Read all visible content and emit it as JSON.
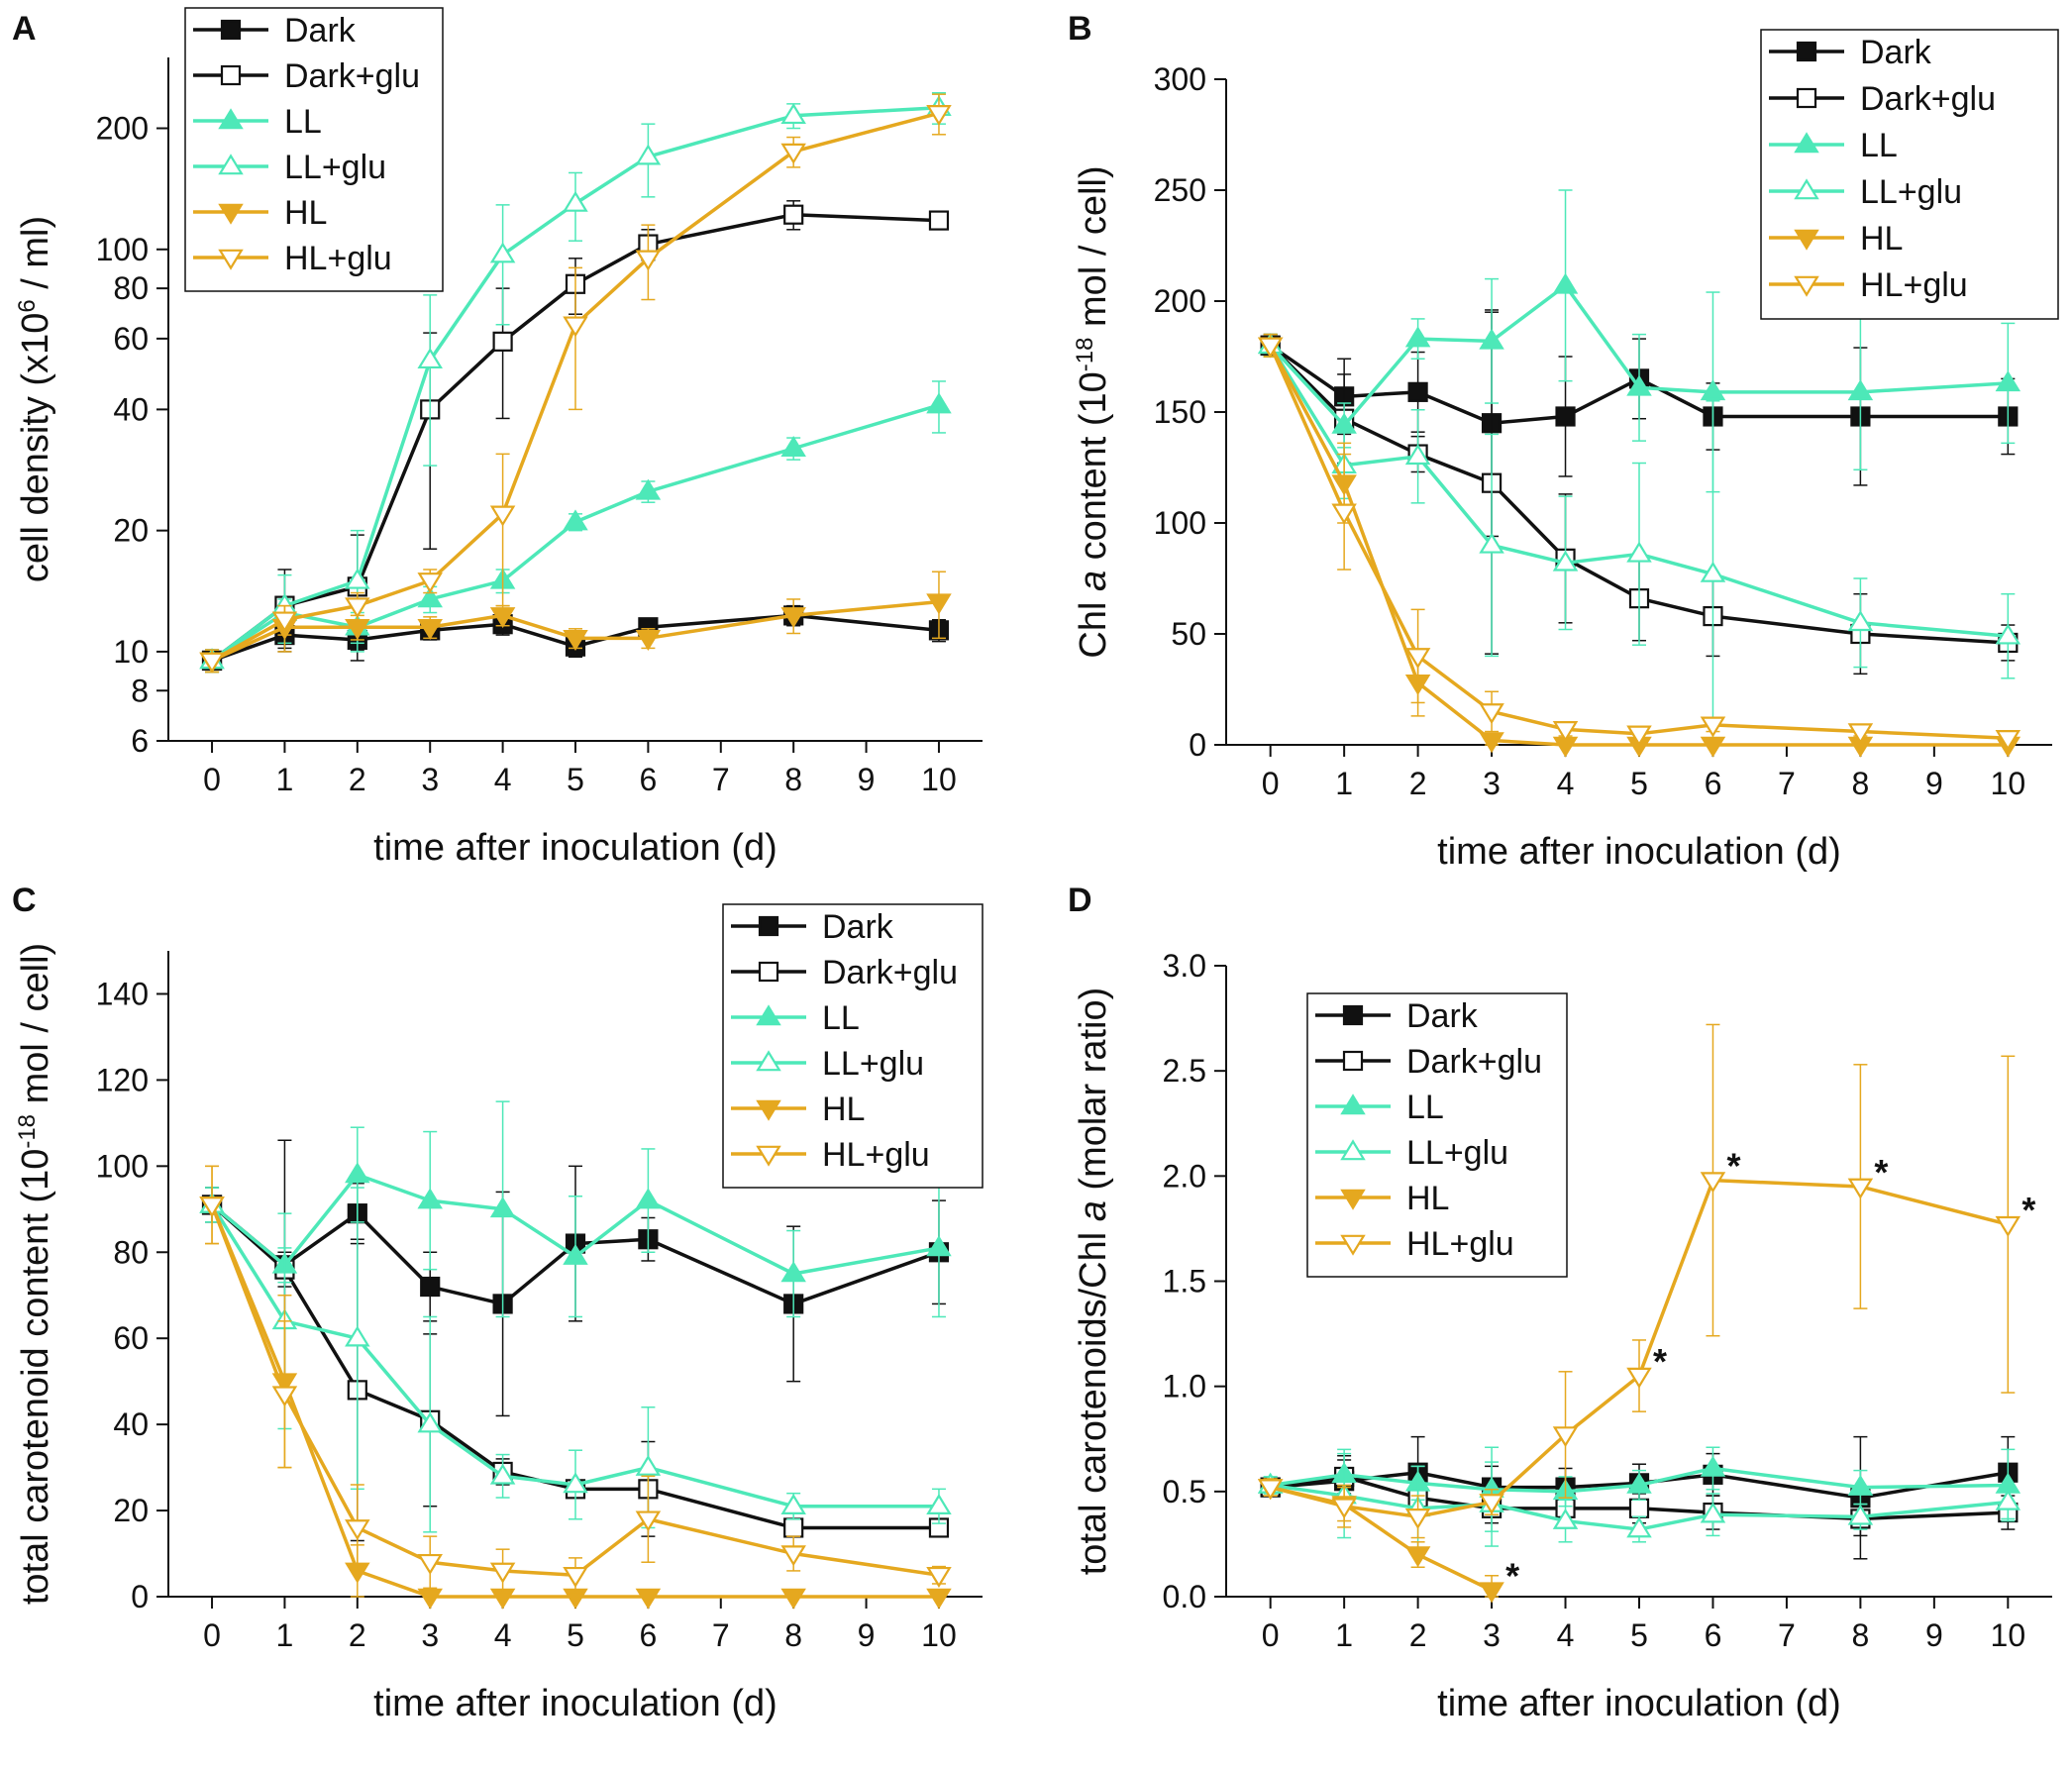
{
  "colors": {
    "black": "#111111",
    "ll": "#4de8b8",
    "hl": "#e5a81f"
  },
  "series_styles": [
    {
      "name": "Dark",
      "color": "#111111",
      "marker": "square",
      "filled": true
    },
    {
      "name": "Dark+glu",
      "color": "#111111",
      "marker": "square",
      "filled": false
    },
    {
      "name": "LL",
      "color": "#4de8b8",
      "marker": "triangle-up",
      "filled": true
    },
    {
      "name": "LL+glu",
      "color": "#4de8b8",
      "marker": "triangle-up",
      "filled": false
    },
    {
      "name": "HL",
      "color": "#e5a81f",
      "marker": "triangle-down",
      "filled": true
    },
    {
      "name": "HL+glu",
      "color": "#e5a81f",
      "marker": "triangle-down",
      "filled": false
    }
  ],
  "chart_data": [
    {
      "panel": "A",
      "type": "line",
      "xlabel": "time after inoculation (d)",
      "ylabel_parts": [
        "cell density (x10",
        "6",
        " / ml)"
      ],
      "yscale": "log",
      "xlim": [
        -0.6,
        10.6
      ],
      "ylim": [
        6,
        300
      ],
      "xticks": [
        0,
        1,
        2,
        3,
        4,
        5,
        6,
        7,
        8,
        9,
        10
      ],
      "yticks": [
        6,
        8,
        10,
        20,
        40,
        60,
        80,
        100,
        200
      ],
      "legend": "top-left",
      "x": [
        0,
        1,
        2,
        3,
        4,
        5,
        6,
        8,
        10
      ],
      "series": [
        {
          "name": "Dark",
          "values": [
            9.5,
            11,
            10.7,
            11.3,
            11.7,
            10.3,
            11.5,
            12.3,
            11.3
          ],
          "errors": [
            0.6,
            0.8,
            0.6,
            0.6,
            0.7,
            0.6,
            0.6,
            0.7,
            0.7
          ]
        },
        {
          "name": "Dark+glu",
          "values": [
            9.5,
            13,
            14.5,
            40,
            59,
            82,
            103,
            122,
            118
          ],
          "errors": [
            0.6,
            3,
            5,
            22,
            21,
            13,
            9,
            10,
            5
          ]
        },
        {
          "name": "LL",
          "values": [
            9.5,
            12.5,
            11.5,
            13.5,
            15,
            21,
            25,
            32,
            41
          ],
          "errors": [
            0.6,
            1,
            1,
            1,
            1,
            1,
            1.5,
            2,
            6
          ]
        },
        {
          "name": "LL+glu",
          "values": [
            9.5,
            13,
            15,
            53,
            97,
            130,
            170,
            215,
            225
          ],
          "errors": [
            0.6,
            2.5,
            5,
            24,
            32,
            25,
            35,
            15,
            20
          ]
        },
        {
          "name": "HL",
          "values": [
            9.5,
            11.5,
            11.5,
            11.5,
            12.3,
            10.8,
            10.8,
            12.3,
            13.3
          ],
          "errors": [
            0.6,
            1.5,
            0.8,
            0.7,
            0.7,
            0.6,
            0.6,
            1.2,
            2.5
          ]
        },
        {
          "name": "HL+glu",
          "values": [
            9.5,
            12,
            13,
            15,
            22,
            65,
            95,
            175,
            218
          ],
          "errors": [
            0.6,
            1,
            1,
            1,
            9,
            25,
            20,
            15,
            25
          ]
        }
      ],
      "annotations": []
    },
    {
      "panel": "B",
      "type": "line",
      "xlabel": "time after inoculation (d)",
      "ylabel_parts": [
        "Chl ",
        "a",
        " content (10",
        "-18",
        " mol / cell)"
      ],
      "yscale": "linear",
      "xlim": [
        -0.6,
        10.6
      ],
      "ylim": [
        0,
        300
      ],
      "xticks": [
        0,
        1,
        2,
        3,
        4,
        5,
        6,
        7,
        8,
        9,
        10
      ],
      "yticks": [
        0,
        50,
        100,
        150,
        200,
        250,
        300
      ],
      "legend": "top-right",
      "x": [
        0,
        1,
        2,
        3,
        4,
        5,
        6,
        8,
        10
      ],
      "series": [
        {
          "name": "Dark",
          "values": [
            180,
            157,
            159,
            145,
            148,
            165,
            148,
            148,
            148
          ],
          "errors": [
            5,
            17,
            18,
            51,
            27,
            18,
            15,
            31,
            17
          ]
        },
        {
          "name": "Dark+glu",
          "values": [
            180,
            147,
            131,
            118,
            84,
            66,
            58,
            50,
            46
          ],
          "errors": [
            5,
            20,
            8,
            77,
            29,
            19,
            18,
            18,
            8
          ]
        },
        {
          "name": "LL",
          "values": [
            180,
            144,
            183,
            182,
            207,
            161,
            159,
            159,
            163
          ],
          "errors": [
            5,
            10,
            9,
            28,
            43,
            24,
            45,
            35,
            27
          ]
        },
        {
          "name": "LL+glu",
          "values": [
            180,
            126,
            130,
            90,
            82,
            86,
            77,
            55,
            49
          ],
          "errors": [
            5,
            15,
            21,
            50,
            30,
            41,
            78,
            20,
            19
          ]
        },
        {
          "name": "HL",
          "values": [
            180,
            118,
            28,
            2,
            0,
            0,
            0,
            0,
            0
          ],
          "errors": [
            5,
            18,
            15,
            3,
            1,
            1,
            1,
            1,
            1
          ]
        },
        {
          "name": "HL+glu",
          "values": [
            180,
            105,
            40,
            15,
            7,
            5,
            9,
            6,
            3
          ],
          "errors": [
            5,
            26,
            21,
            9,
            3,
            2,
            3,
            2,
            2
          ]
        }
      ],
      "annotations": []
    },
    {
      "panel": "C",
      "type": "line",
      "xlabel": "time after inoculation (d)",
      "ylabel_parts": [
        "total carotenoid content (10",
        "-18",
        " mol / cell)"
      ],
      "yscale": "linear",
      "xlim": [
        -0.6,
        10.6
      ],
      "ylim": [
        0,
        150
      ],
      "xticks": [
        0,
        1,
        2,
        3,
        4,
        5,
        6,
        7,
        8,
        9,
        10
      ],
      "yticks": [
        0,
        20,
        40,
        60,
        80,
        100,
        120,
        140
      ],
      "legend": "top-right",
      "x": [
        0,
        1,
        2,
        3,
        4,
        5,
        6,
        8,
        10
      ],
      "series": [
        {
          "name": "Dark",
          "values": [
            91,
            77,
            89,
            72,
            68,
            82,
            83,
            68,
            80
          ],
          "errors": [
            4,
            29,
            7,
            8,
            26,
            18,
            5,
            18,
            12
          ]
        },
        {
          "name": "Dark+glu",
          "values": [
            91,
            76,
            48,
            41,
            29,
            25,
            25,
            16,
            16
          ],
          "errors": [
            4,
            4,
            35,
            20,
            3,
            2,
            11,
            2,
            1
          ]
        },
        {
          "name": "LL",
          "values": [
            91,
            77,
            98,
            92,
            90,
            79,
            92,
            75,
            81
          ],
          "errors": [
            4,
            4,
            11,
            16,
            25,
            14,
            12,
            10,
            16
          ]
        },
        {
          "name": "LL+glu",
          "values": [
            91,
            64,
            60,
            40,
            28,
            26,
            30,
            21,
            21
          ],
          "errors": [
            4,
            25,
            35,
            25,
            5,
            8,
            14,
            3,
            4
          ]
        },
        {
          "name": "HL",
          "values": [
            91,
            50,
            6,
            0,
            0,
            0,
            0,
            0,
            0
          ],
          "errors": [
            9,
            20,
            6,
            1,
            1,
            1,
            1,
            1,
            1
          ]
        },
        {
          "name": "HL+glu",
          "values": [
            91,
            47,
            16,
            8,
            6,
            5,
            18,
            10,
            5
          ],
          "errors": [
            9,
            17,
            10,
            6,
            5,
            4,
            10,
            4,
            2
          ]
        }
      ],
      "annotations": []
    },
    {
      "panel": "D",
      "type": "line",
      "xlabel": "time after inoculation (d)",
      "ylabel_parts": [
        "total carotenoids/Chl ",
        "a",
        " (molar ratio)"
      ],
      "yscale": "linear",
      "xlim": [
        -0.6,
        10.6
      ],
      "ylim": [
        0,
        3.0
      ],
      "xticks": [
        0,
        1,
        2,
        3,
        4,
        5,
        6,
        7,
        8,
        9,
        10
      ],
      "yticks": [
        "0.0",
        "0.5",
        "1.0",
        "1.5",
        "2.0",
        "2.5",
        "3.0"
      ],
      "legend": "top-left",
      "x": [
        0,
        1,
        2,
        3,
        4,
        5,
        6,
        8,
        10
      ],
      "series": [
        {
          "name": "Dark",
          "values": [
            0.52,
            0.55,
            0.59,
            0.52,
            0.52,
            0.54,
            0.58,
            0.47,
            0.59
          ],
          "errors": [
            0.04,
            0.12,
            0.17,
            0.1,
            0.09,
            0.09,
            0.1,
            0.29,
            0.17
          ]
        },
        {
          "name": "Dark+glu",
          "values": [
            0.52,
            0.57,
            0.47,
            0.42,
            0.42,
            0.42,
            0.4,
            0.37,
            0.4
          ],
          "errors": [
            0.04,
            0.08,
            0.08,
            0.07,
            0.07,
            0.07,
            0.08,
            0.08,
            0.08
          ]
        },
        {
          "name": "LL",
          "values": [
            0.53,
            0.58,
            0.54,
            0.51,
            0.5,
            0.53,
            0.61,
            0.52,
            0.53
          ],
          "errors": [
            0.04,
            0.12,
            0.08,
            0.2,
            0.07,
            0.07,
            0.1,
            0.08,
            0.17
          ]
        },
        {
          "name": "LL+glu",
          "values": [
            0.53,
            0.48,
            0.42,
            0.44,
            0.36,
            0.32,
            0.39,
            0.38,
            0.45
          ],
          "errors": [
            0.04,
            0.2,
            0.2,
            0.2,
            0.1,
            0.06,
            0.1,
            0.06,
            0.08
          ]
        },
        {
          "name": "HL",
          "values": [
            0.52,
            0.44,
            0.2,
            0.03,
            null,
            null,
            null,
            null,
            null
          ],
          "errors": [
            0.04,
            0.08,
            0.06,
            0.07,
            null,
            null,
            null,
            null,
            null
          ]
        },
        {
          "name": "HL+glu",
          "values": [
            0.52,
            0.43,
            0.38,
            0.45,
            0.77,
            1.05,
            1.98,
            1.95,
            1.77
          ],
          "errors": [
            0.04,
            0.1,
            0.1,
            0.06,
            0.3,
            0.17,
            0.74,
            0.58,
            0.8
          ]
        }
      ],
      "annotations": [
        {
          "text": "*",
          "x": 3,
          "y": 0.03
        },
        {
          "text": "*",
          "x": 5,
          "y": 1.05
        },
        {
          "text": "*",
          "x": 6,
          "y": 1.98
        },
        {
          "text": "*",
          "x": 8,
          "y": 1.95
        },
        {
          "text": "*",
          "x": 10,
          "y": 1.77
        }
      ]
    }
  ]
}
